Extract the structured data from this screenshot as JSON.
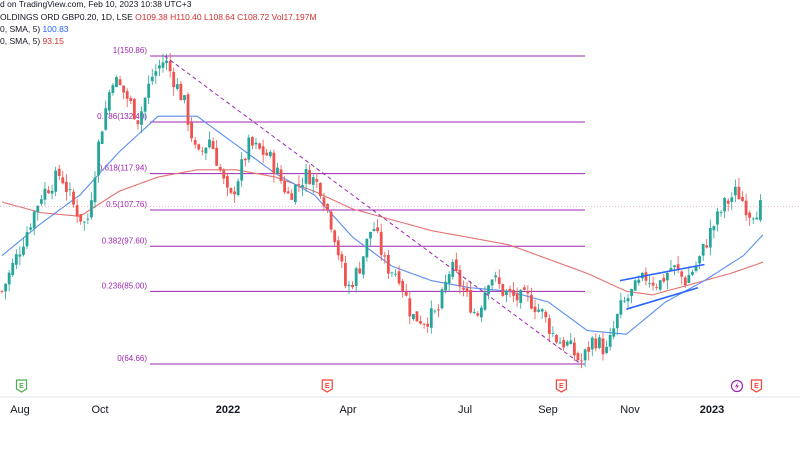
{
  "header": {
    "line1_prefix": "d on TradingView.com, Feb 10, 2023 10:38 UTC+3",
    "line2_symbol": "OLDINGS ORD GBP0.20, 1D, LSE",
    "line2_o": "O109.38",
    "line2_h": "H110.40",
    "line2_l": "L108.64",
    "line2_c": "C108.72",
    "line2_vol": "Vol17.197M",
    "sma1_label": "0, SMA, 5)",
    "sma1_value": "100.83",
    "sma2_label": "0, SMA, 5)",
    "sma2_value": "93.15"
  },
  "colors": {
    "up": "#26a69a",
    "down": "#ef5350",
    "sma_fast": "#5b8def",
    "sma_slow": "#e57373",
    "fib": "#9c27b0",
    "channel": "#2962ff",
    "trend": "#9c27b0",
    "event_earnings": "#f44336",
    "event_dividend": "#4caf50",
    "event_split": "#9c27b0"
  },
  "chart_data": {
    "type": "candlestick",
    "x_axis_labels": [
      "Aug",
      "Oct",
      "2022",
      "Apr",
      "Jul",
      "Sep",
      "Nov",
      "2023"
    ],
    "x_axis_bold": [
      false,
      false,
      true,
      false,
      false,
      false,
      false,
      true
    ],
    "fib_levels": [
      {
        "ratio": "1",
        "value": 150.86,
        "label": "1(150.86)"
      },
      {
        "ratio": "0.786",
        "value": 132.4,
        "label": "0.786(132.40)"
      },
      {
        "ratio": "0.618",
        "value": 117.94,
        "label": "0.618(117.94)"
      },
      {
        "ratio": "0.5",
        "value": 107.76,
        "label": "0.5(107.76)"
      },
      {
        "ratio": "0.382",
        "value": 97.6,
        "label": "0.382(97.60)"
      },
      {
        "ratio": "0.236",
        "value": 85.0,
        "label": "0.236(85.00)"
      },
      {
        "ratio": "0",
        "value": 64.66,
        "label": "0(64.66)"
      }
    ],
    "last_price": 108.72,
    "price_series": [
      {
        "t": 0,
        "p": 85
      },
      {
        "t": 3,
        "p": 98
      },
      {
        "t": 6,
        "p": 112
      },
      {
        "t": 9,
        "p": 118
      },
      {
        "t": 11,
        "p": 109
      },
      {
        "t": 13,
        "p": 103
      },
      {
        "t": 15,
        "p": 128
      },
      {
        "t": 17,
        "p": 145
      },
      {
        "t": 19,
        "p": 140
      },
      {
        "t": 21,
        "p": 133
      },
      {
        "t": 23,
        "p": 145
      },
      {
        "t": 25,
        "p": 150
      },
      {
        "t": 28,
        "p": 138
      },
      {
        "t": 30,
        "p": 122
      },
      {
        "t": 32,
        "p": 128
      },
      {
        "t": 35,
        "p": 110
      },
      {
        "t": 38,
        "p": 126
      },
      {
        "t": 41,
        "p": 123
      },
      {
        "t": 44,
        "p": 112
      },
      {
        "t": 47,
        "p": 118
      },
      {
        "t": 49,
        "p": 114
      },
      {
        "t": 51,
        "p": 102
      },
      {
        "t": 53,
        "p": 85
      },
      {
        "t": 55,
        "p": 92
      },
      {
        "t": 57,
        "p": 104
      },
      {
        "t": 59,
        "p": 92
      },
      {
        "t": 61,
        "p": 90
      },
      {
        "t": 63,
        "p": 78
      },
      {
        "t": 65,
        "p": 77
      },
      {
        "t": 67,
        "p": 79
      },
      {
        "t": 69,
        "p": 92
      },
      {
        "t": 71,
        "p": 85
      },
      {
        "t": 73,
        "p": 78
      },
      {
        "t": 75,
        "p": 90
      },
      {
        "t": 77,
        "p": 85
      },
      {
        "t": 79,
        "p": 83
      },
      {
        "t": 81,
        "p": 83
      },
      {
        "t": 83,
        "p": 79
      },
      {
        "t": 85,
        "p": 72
      },
      {
        "t": 87,
        "p": 70
      },
      {
        "t": 89,
        "p": 65
      },
      {
        "t": 91,
        "p": 72
      },
      {
        "t": 93,
        "p": 68
      },
      {
        "t": 95,
        "p": 80
      },
      {
        "t": 97,
        "p": 85
      },
      {
        "t": 99,
        "p": 89
      },
      {
        "t": 101,
        "p": 87
      },
      {
        "t": 103,
        "p": 92
      },
      {
        "t": 105,
        "p": 88
      },
      {
        "t": 107,
        "p": 93
      },
      {
        "t": 109,
        "p": 102
      },
      {
        "t": 111,
        "p": 109
      },
      {
        "t": 113,
        "p": 113
      },
      {
        "t": 115,
        "p": 107
      },
      {
        "t": 117,
        "p": 109
      }
    ],
    "sma_fast_series": [
      {
        "t": 0,
        "p": 95
      },
      {
        "t": 6,
        "p": 104
      },
      {
        "t": 12,
        "p": 112
      },
      {
        "t": 18,
        "p": 124
      },
      {
        "t": 24,
        "p": 134
      },
      {
        "t": 30,
        "p": 134
      },
      {
        "t": 36,
        "p": 126
      },
      {
        "t": 42,
        "p": 118
      },
      {
        "t": 48,
        "p": 112
      },
      {
        "t": 54,
        "p": 100
      },
      {
        "t": 60,
        "p": 92
      },
      {
        "t": 66,
        "p": 88
      },
      {
        "t": 72,
        "p": 86
      },
      {
        "t": 78,
        "p": 85
      },
      {
        "t": 84,
        "p": 82
      },
      {
        "t": 90,
        "p": 74
      },
      {
        "t": 96,
        "p": 73
      },
      {
        "t": 102,
        "p": 82
      },
      {
        "t": 108,
        "p": 88
      },
      {
        "t": 114,
        "p": 95
      },
      {
        "t": 117,
        "p": 100.83
      }
    ],
    "sma_slow_series": [
      {
        "t": 0,
        "p": 110
      },
      {
        "t": 6,
        "p": 107
      },
      {
        "t": 12,
        "p": 106
      },
      {
        "t": 18,
        "p": 113
      },
      {
        "t": 24,
        "p": 117
      },
      {
        "t": 30,
        "p": 119
      },
      {
        "t": 36,
        "p": 119
      },
      {
        "t": 42,
        "p": 117
      },
      {
        "t": 48,
        "p": 113
      },
      {
        "t": 54,
        "p": 108
      },
      {
        "t": 60,
        "p": 105
      },
      {
        "t": 66,
        "p": 102
      },
      {
        "t": 72,
        "p": 100
      },
      {
        "t": 78,
        "p": 98
      },
      {
        "t": 84,
        "p": 94
      },
      {
        "t": 90,
        "p": 90
      },
      {
        "t": 96,
        "p": 85
      },
      {
        "t": 100,
        "p": 84
      },
      {
        "t": 106,
        "p": 87
      },
      {
        "t": 112,
        "p": 90
      },
      {
        "t": 117,
        "p": 93.15
      }
    ],
    "trendline": {
      "from": {
        "t": 25,
        "p": 150.86
      },
      "to": {
        "t": 89,
        "p": 64.66
      }
    },
    "channel_upper": {
      "from": {
        "t": 95,
        "p": 88
      },
      "to": {
        "t": 108,
        "p": 92.5
      }
    },
    "channel_lower": {
      "from": {
        "t": 96,
        "p": 80
      },
      "to": {
        "t": 107,
        "p": 86
      }
    },
    "events": [
      {
        "t": 3,
        "letter": "E",
        "kind": "dividend"
      },
      {
        "t": 50,
        "letter": "E",
        "kind": "earnings"
      },
      {
        "t": 86,
        "letter": "E",
        "kind": "earnings"
      },
      {
        "t": 113,
        "letter": "",
        "kind": "split"
      },
      {
        "t": 116,
        "letter": "E",
        "kind": "earnings"
      }
    ]
  }
}
